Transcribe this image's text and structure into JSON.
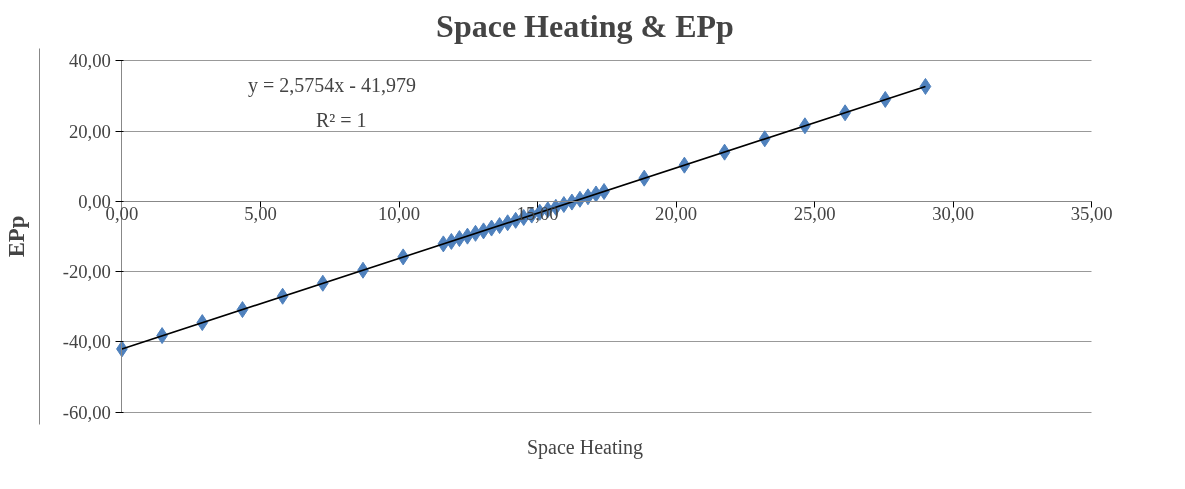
{
  "chart_data": {
    "type": "scatter",
    "title": "Space Heating & EPp",
    "xlabel": "Space Heating",
    "ylabel": "EPp",
    "marker": "diamond",
    "grid": "y",
    "xlim": [
      0,
      35
    ],
    "ylim": [
      -60,
      40
    ],
    "xticks": [
      {
        "value": 0,
        "label": "0,00"
      },
      {
        "value": 5,
        "label": "5,00"
      },
      {
        "value": 10,
        "label": "10,00"
      },
      {
        "value": 15,
        "label": "15,00"
      },
      {
        "value": 20,
        "label": "20,00"
      },
      {
        "value": 25,
        "label": "25,00"
      },
      {
        "value": 30,
        "label": "30,00"
      },
      {
        "value": 35,
        "label": "35,00"
      }
    ],
    "yticks": [
      {
        "value": -60,
        "label": "-60,00"
      },
      {
        "value": -40,
        "label": "-40,00"
      },
      {
        "value": -20,
        "label": "-20,00"
      },
      {
        "value": 0,
        "label": "0,00"
      },
      {
        "value": 20,
        "label": "20,00"
      },
      {
        "value": 40,
        "label": "40,00"
      }
    ],
    "annotations": [
      "y = 2,5754x - 41,979",
      "R² = 1"
    ],
    "series": [
      {
        "color": "#4f81bd",
        "x": [
          0,
          1.45,
          2.9,
          4.35,
          5.8,
          7.25,
          8.7,
          10.15,
          11.6,
          11.89,
          12.18,
          12.47,
          12.76,
          13.05,
          13.34,
          13.63,
          13.92,
          14.21,
          14.5,
          14.79,
          15.08,
          15.37,
          15.66,
          15.95,
          16.24,
          16.53,
          16.82,
          17.11,
          17.4,
          18.85,
          20.3,
          21.75,
          23.2,
          24.65,
          26.1,
          27.55,
          29
        ],
        "values": [
          -42.0,
          -38.2,
          -34.5,
          -30.8,
          -27.0,
          -23.3,
          -19.6,
          -15.8,
          -12.1,
          -11.4,
          -10.6,
          -9.9,
          -9.1,
          -8.4,
          -7.6,
          -6.9,
          -6.1,
          -5.4,
          -4.6,
          -3.9,
          -3.1,
          -2.4,
          -1.7,
          -0.9,
          -0.2,
          0.6,
          1.3,
          2.1,
          2.8,
          6.6,
          10.3,
          14.0,
          17.8,
          21.5,
          25.2,
          29.0,
          32.7
        ]
      },
      {
        "type": "line",
        "marker": "none",
        "color": "#000000",
        "x": [
          0,
          29
        ],
        "values": [
          -42.0,
          32.7
        ]
      }
    ]
  }
}
